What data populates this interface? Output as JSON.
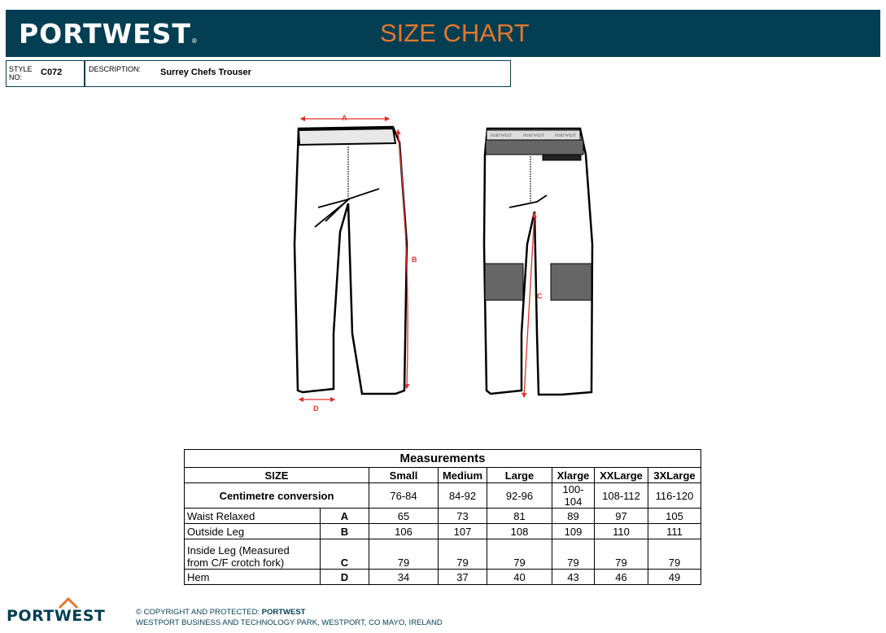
{
  "header": {
    "brand": "PORTWEST",
    "registered": "®",
    "title": "SIZE CHART",
    "bg_color": "#033e52",
    "title_color": "#e0782f"
  },
  "style": {
    "label_line1": "STYLE",
    "label_line2": "NO:",
    "value": "C072"
  },
  "description": {
    "label": "DESCRIPTION:",
    "value": "Surrey Chefs Trouser"
  },
  "drawing": {
    "labels": {
      "a": "A",
      "b": "B",
      "c": "C",
      "d": "D"
    },
    "waistband_text": "PORTWEST",
    "arrow_color": "#e0302a"
  },
  "table": {
    "title": "Measurements",
    "size_label": "SIZE",
    "sizes": [
      "Small",
      "Medium",
      "Large",
      "Xlarge",
      "XXLarge",
      "3XLarge"
    ],
    "conversion_label": "Centimetre conversion",
    "conversion": [
      "76-84",
      "84-92",
      "92-96",
      "100-104",
      "108-112",
      "116-120"
    ],
    "rows": [
      {
        "label": "Waist Relaxed",
        "code": "A",
        "values": [
          "65",
          "73",
          "81",
          "89",
          "97",
          "105"
        ]
      },
      {
        "label": "Outside Leg",
        "code": "B",
        "values": [
          "106",
          "107",
          "108",
          "109",
          "110",
          "111"
        ]
      },
      {
        "label": "Inside Leg (Measured",
        "label2": "from C/F crotch fork)",
        "code": "C",
        "values": [
          "79",
          "79",
          "79",
          "79",
          "79",
          "79"
        ]
      },
      {
        "label": "Hem",
        "code": "D",
        "values": [
          "34",
          "37",
          "40",
          "43",
          "46",
          "49"
        ]
      }
    ]
  },
  "footer": {
    "brand": "PORTWEST",
    "copyright": "© COPYRIGHT AND PROTECTED: ",
    "copyright_owner": "PORTWEST",
    "address": "WESTPORT BUSINESS AND TECHNOLOGY PARK, WESTPORT, CO MAYO, IRELAND"
  }
}
